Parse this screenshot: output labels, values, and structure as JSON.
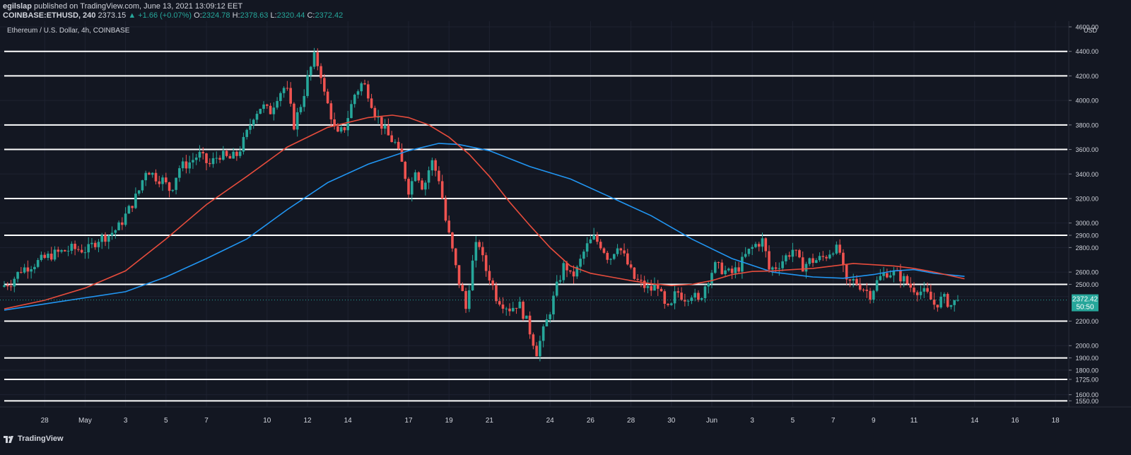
{
  "header": {
    "publisher": "egilslap",
    "published_text": "published on TradingView.com, June 13, 2021 13:09:12 EET",
    "symbol": "COINBASE:ETHUSD, 240",
    "last": "2373.15",
    "change": "▲ +1.66 (+0.07%)",
    "o_label": "O:",
    "o_val": "2324.78",
    "h_label": "H:",
    "h_val": "2378.63",
    "l_label": "L:",
    "l_val": "2320.44",
    "c_label": "C:",
    "c_val": "2372.42"
  },
  "chart_title": "Ethereum / U.S. Dollar, 4h, COINBASE",
  "currency": "USD",
  "footer": {
    "brand": "TradingView"
  },
  "colors": {
    "bg": "#131722",
    "up": "#26a69a",
    "down": "#ef5350",
    "ma_fast": "#e74c3c",
    "ma_slow": "#2196f3",
    "level": "#ffffff",
    "grid": "#1e2230"
  },
  "chart_data": {
    "type": "candlestick",
    "interval": "4h",
    "ylim": [
      1500,
      4600
    ],
    "current_price": "2372.42",
    "countdown": "50:50",
    "price_axis_labels": [
      "4600.00",
      "4400.00",
      "4200.00",
      "4000.00",
      "3800.00",
      "3600.00",
      "3400.00",
      "3200.00",
      "3000.00",
      "2900.00",
      "2800.00",
      "2600.00",
      "2500.00",
      "2200.00",
      "2000.00",
      "1900.00",
      "1800.00",
      "1725.00",
      "1600.00",
      "1550.00"
    ],
    "horizontal_levels": [
      4400,
      4200,
      3800,
      3600,
      3200,
      2900,
      2500,
      2200,
      1900,
      1725,
      1550
    ],
    "x_ticks": [
      {
        "day": 28,
        "label": "28"
      },
      {
        "day": 30,
        "label": "May"
      },
      {
        "day": 32,
        "label": "3"
      },
      {
        "day": 34,
        "label": "5"
      },
      {
        "day": 36,
        "label": "7"
      },
      {
        "day": 39,
        "label": "10"
      },
      {
        "day": 41,
        "label": "12"
      },
      {
        "day": 43,
        "label": "14"
      },
      {
        "day": 46,
        "label": "17"
      },
      {
        "day": 48,
        "label": "19"
      },
      {
        "day": 50,
        "label": "21"
      },
      {
        "day": 53,
        "label": "24"
      },
      {
        "day": 55,
        "label": "26"
      },
      {
        "day": 57,
        "label": "28"
      },
      {
        "day": 59,
        "label": "30"
      },
      {
        "day": 61,
        "label": "Jun"
      },
      {
        "day": 63,
        "label": "3"
      },
      {
        "day": 65,
        "label": "5"
      },
      {
        "day": 67,
        "label": "7"
      },
      {
        "day": 69,
        "label": "9"
      },
      {
        "day": 71,
        "label": "11"
      },
      {
        "day": 74,
        "label": "14"
      },
      {
        "day": 76,
        "label": "16"
      },
      {
        "day": 78,
        "label": "18"
      }
    ],
    "price_path": [
      [
        26.0,
        2480
      ],
      [
        26.5,
        2520
      ],
      [
        27.0,
        2620
      ],
      [
        27.8,
        2680
      ],
      [
        28.5,
        2740
      ],
      [
        29.5,
        2790
      ],
      [
        30.3,
        2780
      ],
      [
        30.8,
        2870
      ],
      [
        31.3,
        2900
      ],
      [
        31.8,
        2960
      ],
      [
        32.3,
        3100
      ],
      [
        32.8,
        3250
      ],
      [
        33.2,
        3450
      ],
      [
        33.6,
        3380
      ],
      [
        34.0,
        3350
      ],
      [
        34.4,
        3260
      ],
      [
        34.8,
        3450
      ],
      [
        35.3,
        3490
      ],
      [
        35.8,
        3560
      ],
      [
        36.3,
        3470
      ],
      [
        36.8,
        3560
      ],
      [
        37.3,
        3520
      ],
      [
        37.7,
        3560
      ],
      [
        38.1,
        3700
      ],
      [
        38.5,
        3880
      ],
      [
        38.9,
        3960
      ],
      [
        39.3,
        3900
      ],
      [
        39.7,
        4050
      ],
      [
        40.1,
        4120
      ],
      [
        40.5,
        3800
      ],
      [
        40.9,
        4000
      ],
      [
        41.2,
        4200
      ],
      [
        41.5,
        4350
      ],
      [
        41.8,
        4250
      ],
      [
        42.0,
        4050
      ],
      [
        42.3,
        3900
      ],
      [
        42.6,
        3700
      ],
      [
        43.0,
        3780
      ],
      [
        43.5,
        4050
      ],
      [
        43.9,
        4150
      ],
      [
        44.2,
        4050
      ],
      [
        44.5,
        3900
      ],
      [
        44.9,
        3780
      ],
      [
        45.2,
        3700
      ],
      [
        45.5,
        3650
      ],
      [
        45.9,
        3450
      ],
      [
        46.2,
        3250
      ],
      [
        46.5,
        3450
      ],
      [
        46.9,
        3280
      ],
      [
        47.3,
        3510
      ],
      [
        47.7,
        3350
      ],
      [
        48.0,
        3020
      ],
      [
        48.3,
        2800
      ],
      [
        48.6,
        2550
      ],
      [
        48.8,
        2450
      ],
      [
        49.0,
        2300
      ],
      [
        49.3,
        2650
      ],
      [
        49.6,
        2880
      ],
      [
        49.9,
        2650
      ],
      [
        50.2,
        2550
      ],
      [
        50.5,
        2400
      ],
      [
        50.8,
        2350
      ],
      [
        51.2,
        2300
      ],
      [
        51.6,
        2350
      ],
      [
        52.0,
        2200
      ],
      [
        52.3,
        2050
      ],
      [
        52.5,
        1950
      ],
      [
        52.8,
        2100
      ],
      [
        53.1,
        2250
      ],
      [
        53.5,
        2480
      ],
      [
        53.9,
        2680
      ],
      [
        54.2,
        2550
      ],
      [
        54.5,
        2620
      ],
      [
        54.9,
        2790
      ],
      [
        55.3,
        2880
      ],
      [
        55.7,
        2820
      ],
      [
        56.1,
        2700
      ],
      [
        56.5,
        2830
      ],
      [
        56.9,
        2700
      ],
      [
        57.3,
        2550
      ],
      [
        57.7,
        2500
      ],
      [
        58.1,
        2450
      ],
      [
        58.5,
        2500
      ],
      [
        58.8,
        2320
      ],
      [
        59.1,
        2280
      ],
      [
        59.4,
        2450
      ],
      [
        59.8,
        2390
      ],
      [
        60.2,
        2430
      ],
      [
        60.5,
        2350
      ],
      [
        60.9,
        2520
      ],
      [
        61.3,
        2650
      ],
      [
        61.7,
        2620
      ],
      [
        62.1,
        2580
      ],
      [
        62.5,
        2640
      ],
      [
        62.9,
        2750
      ],
      [
        63.3,
        2820
      ],
      [
        63.7,
        2860
      ],
      [
        64.0,
        2620
      ],
      [
        64.4,
        2650
      ],
      [
        64.8,
        2720
      ],
      [
        65.2,
        2790
      ],
      [
        65.6,
        2640
      ],
      [
        66.0,
        2690
      ],
      [
        66.4,
        2700
      ],
      [
        66.8,
        2730
      ],
      [
        67.2,
        2800
      ],
      [
        67.5,
        2760
      ],
      [
        67.8,
        2500
      ],
      [
        68.2,
        2530
      ],
      [
        68.6,
        2480
      ],
      [
        69.0,
        2420
      ],
      [
        69.4,
        2540
      ],
      [
        69.8,
        2600
      ],
      [
        70.2,
        2590
      ],
      [
        70.6,
        2550
      ],
      [
        71.0,
        2480
      ],
      [
        71.4,
        2450
      ],
      [
        71.8,
        2420
      ],
      [
        72.2,
        2330
      ],
      [
        72.6,
        2390
      ],
      [
        73.0,
        2330
      ],
      [
        73.3,
        2372
      ]
    ],
    "ma_fast_points": [
      [
        26.0,
        2300
      ],
      [
        28.0,
        2370
      ],
      [
        30.0,
        2470
      ],
      [
        32.0,
        2610
      ],
      [
        34.0,
        2870
      ],
      [
        36.0,
        3150
      ],
      [
        38.0,
        3380
      ],
      [
        40.0,
        3620
      ],
      [
        42.0,
        3780
      ],
      [
        44.0,
        3860
      ],
      [
        45.2,
        3880
      ],
      [
        46.0,
        3860
      ],
      [
        47.0,
        3800
      ],
      [
        48.0,
        3700
      ],
      [
        49.0,
        3560
      ],
      [
        50.0,
        3380
      ],
      [
        51.0,
        3170
      ],
      [
        52.0,
        2980
      ],
      [
        53.0,
        2800
      ],
      [
        54.0,
        2650
      ],
      [
        55.0,
        2590
      ],
      [
        56.0,
        2560
      ],
      [
        57.0,
        2530
      ],
      [
        58.0,
        2505
      ],
      [
        59.0,
        2490
      ],
      [
        60.0,
        2500
      ],
      [
        61.0,
        2530
      ],
      [
        62.0,
        2580
      ],
      [
        63.0,
        2605
      ],
      [
        64.0,
        2610
      ],
      [
        65.0,
        2620
      ],
      [
        66.0,
        2630
      ],
      [
        67.0,
        2650
      ],
      [
        68.0,
        2670
      ],
      [
        69.0,
        2660
      ],
      [
        70.0,
        2650
      ],
      [
        71.0,
        2630
      ],
      [
        72.0,
        2600
      ],
      [
        73.5,
        2545
      ]
    ],
    "ma_slow_points": [
      [
        26.0,
        2290
      ],
      [
        28.0,
        2340
      ],
      [
        30.0,
        2390
      ],
      [
        32.0,
        2440
      ],
      [
        34.0,
        2560
      ],
      [
        36.0,
        2710
      ],
      [
        38.0,
        2870
      ],
      [
        40.0,
        3110
      ],
      [
        42.0,
        3330
      ],
      [
        44.0,
        3480
      ],
      [
        46.0,
        3590
      ],
      [
        47.5,
        3650
      ],
      [
        48.5,
        3640
      ],
      [
        50.0,
        3590
      ],
      [
        52.0,
        3460
      ],
      [
        54.0,
        3360
      ],
      [
        56.0,
        3210
      ],
      [
        58.0,
        3060
      ],
      [
        60.0,
        2870
      ],
      [
        62.0,
        2710
      ],
      [
        64.0,
        2600
      ],
      [
        66.0,
        2560
      ],
      [
        67.5,
        2550
      ],
      [
        69.0,
        2580
      ],
      [
        70.0,
        2610
      ],
      [
        71.0,
        2620
      ],
      [
        72.0,
        2590
      ],
      [
        73.5,
        2565
      ]
    ]
  }
}
